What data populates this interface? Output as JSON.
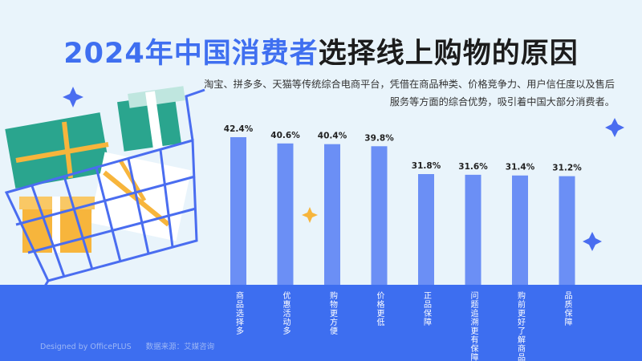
{
  "header": {
    "title_part1": "2024年中国消费者",
    "title_part2": "选择线上购物的原因",
    "subtitle": "淘宝、拼多多、天猫等传统综合电商平台，凭借在商品种类、价格竞争力、用户信任度以及售后服务等方面的综合优势，吸引着中国大部分消费者。"
  },
  "footer": {
    "designed_by": "Designed by OfficePLUS",
    "source": "数据来源：艾媒咨询"
  },
  "colors": {
    "accent": "#3f6ff0",
    "bar": "#6b8ff5",
    "band": "#3d6ef0",
    "background": "#e9f4fb"
  },
  "decorations": [
    "shopping-cart-illustration",
    "gift-box-icons",
    "sparkle-stars"
  ],
  "chart_data": {
    "type": "bar",
    "categories": [
      "商品选择多",
      "优惠活动多",
      "购物更方便",
      "价格更低",
      "正品保障",
      "问题追溯更有保障",
      "购前更好了解商品",
      "品质保障"
    ],
    "values": [
      42.4,
      40.6,
      40.4,
      39.8,
      31.8,
      31.6,
      31.4,
      31.2
    ],
    "value_labels": [
      "42.4%",
      "40.6%",
      "40.4%",
      "39.8%",
      "31.8%",
      "31.6%",
      "31.4%",
      "31.2%"
    ],
    "unit": "%",
    "title": "",
    "xlabel": "",
    "ylabel": "",
    "ylim": [
      0,
      42.4
    ],
    "grid": false,
    "legend": "none"
  }
}
